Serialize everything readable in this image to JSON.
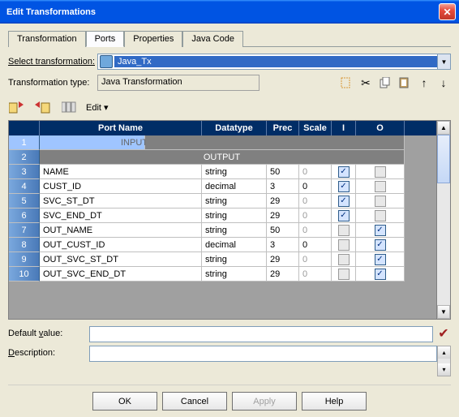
{
  "window": {
    "title": "Edit Transformations"
  },
  "tabs": [
    {
      "label": "Transformation"
    },
    {
      "label": "Ports"
    },
    {
      "label": "Properties"
    },
    {
      "label": "Java Code"
    }
  ],
  "form": {
    "select_label_pre": "S",
    "select_label_u": "e",
    "select_label_post": "lect transformation:",
    "select_value": "Java_Tx",
    "type_label": "Transformation type:",
    "type_value": "Java Transformation"
  },
  "edit_menu": "Edit ",
  "grid": {
    "headers": {
      "port": "Port Name",
      "datatype": "Datatype",
      "prec": "Prec",
      "scale": "Scale",
      "i": "I",
      "o": "O"
    },
    "input_label": "INPUT",
    "output_label": "OUTPUT",
    "rows": [
      {
        "n": "1",
        "section": "input",
        "name": "",
        "dt": "",
        "prec": "",
        "scale": "",
        "i": false,
        "o": false
      },
      {
        "n": "2",
        "section": "output-label"
      },
      {
        "n": "3",
        "name": "NAME",
        "dt": "string",
        "prec": "50",
        "scale": "0",
        "scale_dis": true,
        "i": true,
        "o": false
      },
      {
        "n": "4",
        "name": "CUST_ID",
        "dt": "decimal",
        "prec": "3",
        "scale": "0",
        "i": true,
        "o": false
      },
      {
        "n": "5",
        "name": "SVC_ST_DT",
        "dt": "string",
        "prec": "29",
        "scale": "0",
        "scale_dis": true,
        "i": true,
        "o": false
      },
      {
        "n": "6",
        "name": "SVC_END_DT",
        "dt": "string",
        "prec": "29",
        "scale": "0",
        "scale_dis": true,
        "i": true,
        "o": false
      },
      {
        "n": "7",
        "name": "OUT_NAME",
        "dt": "string",
        "prec": "50",
        "scale": "0",
        "scale_dis": true,
        "i": false,
        "i_dis": true,
        "o": true
      },
      {
        "n": "8",
        "name": "OUT_CUST_ID",
        "dt": "decimal",
        "prec": "3",
        "scale": "0",
        "i": false,
        "i_dis": true,
        "o": true
      },
      {
        "n": "9",
        "name": "OUT_SVC_ST_DT",
        "dt": "string",
        "prec": "29",
        "scale": "0",
        "scale_dis": true,
        "i": false,
        "i_dis": true,
        "o": true
      },
      {
        "n": "10",
        "name": "OUT_SVC_END_DT",
        "dt": "string",
        "prec": "29",
        "scale": "0",
        "scale_dis": true,
        "i": false,
        "i_dis": true,
        "o": true
      }
    ]
  },
  "bottom": {
    "default_label_pre": "Default ",
    "default_label_u": "v",
    "default_label_post": "alue:",
    "default_value": "",
    "desc_label_pre": "",
    "desc_label_u": "D",
    "desc_label_post": "escription:",
    "desc_value": ""
  },
  "buttons": {
    "ok": "OK",
    "cancel": "Cancel",
    "apply": "Apply",
    "help": "Help"
  },
  "colors": {
    "titlebar": "#0054e3",
    "header_bg": "#002d66",
    "rownum_bg": "#5b8fd0",
    "input_row": "#9fc5ff",
    "output_row_bg": "#808080",
    "accent": "#316ac5"
  }
}
